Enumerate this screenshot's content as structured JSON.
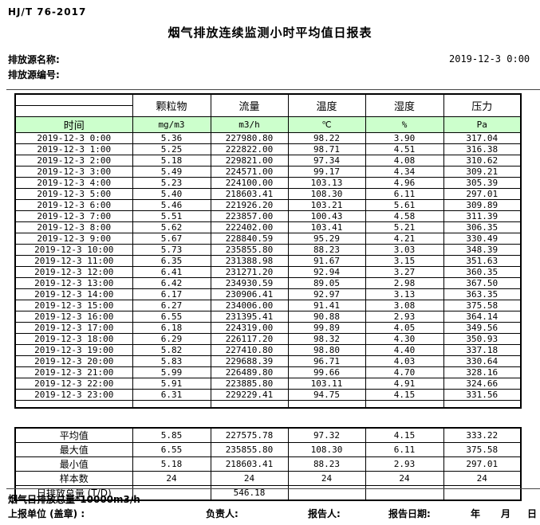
{
  "header": {
    "standard": "HJ/T 76-2017",
    "title": "烟气排放连续监测小时平均值日报表",
    "source_name_label": "排放源名称:",
    "source_id_label": "排放源编号:",
    "datetime": "2019-12-3 0:00"
  },
  "table": {
    "time_header": "时间",
    "columns": [
      "颗粒物",
      "流量",
      "温度",
      "湿度",
      "压力"
    ],
    "units": [
      "mg/m3",
      "m3/h",
      "℃",
      "%",
      "Pa"
    ],
    "rows": [
      {
        "time": "2019-12-3 0:00",
        "values": [
          "5.36",
          "227980.80",
          "98.22",
          "3.90",
          "317.04"
        ]
      },
      {
        "time": "2019-12-3 1:00",
        "values": [
          "5.25",
          "222822.00",
          "98.71",
          "4.51",
          "316.38"
        ]
      },
      {
        "time": "2019-12-3 2:00",
        "values": [
          "5.18",
          "229821.00",
          "97.34",
          "4.08",
          "310.62"
        ]
      },
      {
        "time": "2019-12-3 3:00",
        "values": [
          "5.49",
          "224571.00",
          "99.17",
          "4.34",
          "309.21"
        ]
      },
      {
        "time": "2019-12-3 4:00",
        "values": [
          "5.23",
          "224100.00",
          "103.13",
          "4.96",
          "305.39"
        ]
      },
      {
        "time": "2019-12-3 5:00",
        "values": [
          "5.40",
          "218603.41",
          "108.30",
          "6.11",
          "297.01"
        ]
      },
      {
        "time": "2019-12-3 6:00",
        "values": [
          "5.46",
          "221926.20",
          "103.21",
          "5.61",
          "309.89"
        ]
      },
      {
        "time": "2019-12-3 7:00",
        "values": [
          "5.51",
          "223857.00",
          "100.43",
          "4.58",
          "311.39"
        ]
      },
      {
        "time": "2019-12-3 8:00",
        "values": [
          "5.62",
          "222402.00",
          "103.41",
          "5.21",
          "306.35"
        ]
      },
      {
        "time": "2019-12-3 9:00",
        "values": [
          "5.67",
          "228840.59",
          "95.29",
          "4.21",
          "330.49"
        ]
      },
      {
        "time": "2019-12-3 10:00",
        "values": [
          "5.73",
          "235855.80",
          "88.23",
          "3.03",
          "348.39"
        ]
      },
      {
        "time": "2019-12-3 11:00",
        "values": [
          "6.35",
          "231388.98",
          "91.67",
          "3.15",
          "351.63"
        ]
      },
      {
        "time": "2019-12-3 12:00",
        "values": [
          "6.41",
          "231271.20",
          "92.94",
          "3.27",
          "360.35"
        ]
      },
      {
        "time": "2019-12-3 13:00",
        "values": [
          "6.42",
          "234930.59",
          "89.05",
          "2.98",
          "367.50"
        ]
      },
      {
        "time": "2019-12-3 14:00",
        "values": [
          "6.17",
          "230906.41",
          "92.97",
          "3.13",
          "363.35"
        ]
      },
      {
        "time": "2019-12-3 15:00",
        "values": [
          "6.27",
          "234006.00",
          "91.41",
          "3.08",
          "375.58"
        ]
      },
      {
        "time": "2019-12-3 16:00",
        "values": [
          "6.55",
          "231395.41",
          "90.88",
          "2.93",
          "364.14"
        ]
      },
      {
        "time": "2019-12-3 17:00",
        "values": [
          "6.18",
          "224319.00",
          "99.89",
          "4.05",
          "349.56"
        ]
      },
      {
        "time": "2019-12-3 18:00",
        "values": [
          "6.29",
          "226117.20",
          "98.32",
          "4.30",
          "350.93"
        ]
      },
      {
        "time": "2019-12-3 19:00",
        "values": [
          "5.82",
          "227410.80",
          "98.80",
          "4.40",
          "337.18"
        ]
      },
      {
        "time": "2019-12-3 20:00",
        "values": [
          "5.83",
          "229688.39",
          "96.71",
          "4.03",
          "330.64"
        ]
      },
      {
        "time": "2019-12-3 21:00",
        "values": [
          "5.99",
          "226489.80",
          "99.66",
          "4.70",
          "328.16"
        ]
      },
      {
        "time": "2019-12-3 22:00",
        "values": [
          "5.91",
          "223885.80",
          "103.11",
          "4.91",
          "324.66"
        ]
      },
      {
        "time": "2019-12-3 23:00",
        "values": [
          "6.31",
          "229229.41",
          "94.75",
          "4.15",
          "331.56"
        ]
      }
    ],
    "summary": [
      {
        "label": "平均值",
        "values": [
          "5.85",
          "227575.78",
          "97.32",
          "4.15",
          "333.22"
        ]
      },
      {
        "label": "最大值",
        "values": [
          "6.55",
          "235855.80",
          "108.30",
          "6.11",
          "375.58"
        ]
      },
      {
        "label": "最小值",
        "values": [
          "5.18",
          "218603.41",
          "88.23",
          "2.93",
          "297.01"
        ]
      },
      {
        "label": "样本数",
        "values": [
          "24",
          "24",
          "24",
          "24",
          "24"
        ]
      },
      {
        "label": "日排放总量 (T/D)",
        "values": [
          "",
          "546.18",
          "",
          "",
          ""
        ]
      }
    ]
  },
  "footer": {
    "note": "烟气日排放总量*10000m3/h",
    "unit_label": "上报单位 (盖章) :",
    "responsible_label": "负责人:",
    "reporter_label": "报告人:",
    "report_date_label": "报告日期:",
    "year_label": "年",
    "month_label": "月",
    "day_label": "日"
  },
  "colors": {
    "header_green": "#ccffcc"
  }
}
